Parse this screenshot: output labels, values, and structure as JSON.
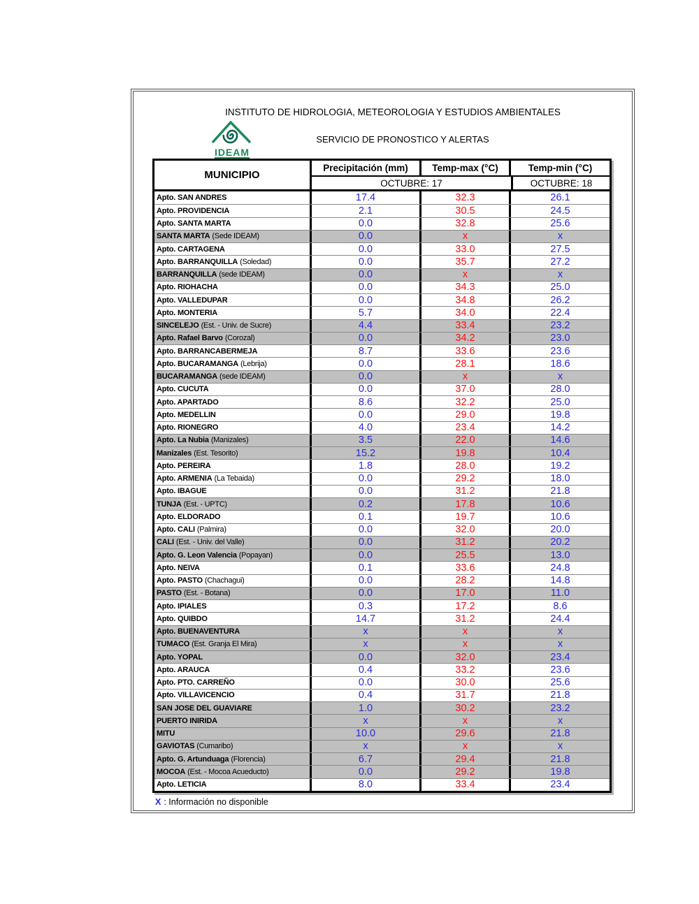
{
  "header": {
    "institute": "INSTITUTO DE HIDROLOGIA, METEOROLOGIA Y ESTUDIOS AMBIENTALES",
    "service": "SERVICIO DE PRONOSTICO Y ALERTAS",
    "logo_text": "IDEAM"
  },
  "table": {
    "columns": [
      "MUNICIPIO",
      "Precipitación (mm)",
      "Temp-max (°C)",
      "Temp-min (°C)"
    ],
    "date_octubre_17": "OCTUBRE: 17",
    "date_octubre_18": "OCTUBRE: 18",
    "rows": [
      {
        "name": "Apto. SAN ANDRES",
        "note": "",
        "precip": "17.4",
        "tmax": "32.3",
        "tmin": "26.1",
        "shaded": false
      },
      {
        "name": "Apto. PROVIDENCIA",
        "note": "",
        "precip": "2.1",
        "tmax": "30.5",
        "tmin": "24.5",
        "shaded": false
      },
      {
        "name": "Apto. SANTA MARTA",
        "note": "",
        "precip": "0.0",
        "tmax": "32.8",
        "tmin": "25.6",
        "shaded": false
      },
      {
        "name": "SANTA MARTA",
        "note": "(Sede IDEAM)",
        "precip": "0.0",
        "tmax": "x",
        "tmin": "x",
        "shaded": true
      },
      {
        "name": "Apto. CARTAGENA",
        "note": "",
        "precip": "0.0",
        "tmax": "33.0",
        "tmin": "27.5",
        "shaded": false
      },
      {
        "name": "Apto. BARRANQUILLA",
        "note": "(Soledad)",
        "precip": "0.0",
        "tmax": "35.7",
        "tmin": "27.2",
        "shaded": false
      },
      {
        "name": "BARRANQUILLA",
        "note": "(sede IDEAM)",
        "precip": "0.0",
        "tmax": "x",
        "tmin": "x",
        "shaded": true
      },
      {
        "name": "Apto. RIOHACHA",
        "note": "",
        "precip": "0.0",
        "tmax": "34.3",
        "tmin": "25.0",
        "shaded": false
      },
      {
        "name": "Apto. VALLEDUPAR",
        "note": "",
        "precip": "0.0",
        "tmax": "34.8",
        "tmin": "26.2",
        "shaded": false
      },
      {
        "name": "Apto. MONTERIA",
        "note": "",
        "precip": "5.7",
        "tmax": "34.0",
        "tmin": "22.4",
        "shaded": false
      },
      {
        "name": "SINCELEJO",
        "note": "(Est. - Univ. de Sucre)",
        "precip": "4.4",
        "tmax": "33.4",
        "tmin": "23.2",
        "shaded": true
      },
      {
        "name": "Apto. Rafael Barvo",
        "note": "(Corozal)",
        "precip": "0.0",
        "tmax": "34.2",
        "tmin": "23.0",
        "shaded": true
      },
      {
        "name": "Apto. BARRANCABERMEJA",
        "note": "",
        "precip": "8.7",
        "tmax": "33.6",
        "tmin": "23.6",
        "shaded": false
      },
      {
        "name": "Apto. BUCARAMANGA",
        "note": "(Lebrija)",
        "precip": "0.0",
        "tmax": "28.1",
        "tmin": "18.6",
        "shaded": false
      },
      {
        "name": "BUCARAMANGA",
        "note": "(sede IDEAM)",
        "precip": "0.0",
        "tmax": "x",
        "tmin": "x",
        "shaded": true
      },
      {
        "name": "Apto. CUCUTA",
        "note": "",
        "precip": "0.0",
        "tmax": "37.0",
        "tmin": "28.0",
        "shaded": false
      },
      {
        "name": "Apto. APARTADO",
        "note": "",
        "precip": "8.6",
        "tmax": "32.2",
        "tmin": "25.0",
        "shaded": false
      },
      {
        "name": "Apto. MEDELLIN",
        "note": "",
        "precip": "0.0",
        "tmax": "29.0",
        "tmin": "19.8",
        "shaded": false
      },
      {
        "name": "Apto. RIONEGRO",
        "note": "",
        "precip": "4.0",
        "tmax": "23.4",
        "tmin": "14.2",
        "shaded": false
      },
      {
        "name": "Apto. La Nubia",
        "note": "(Manizales)",
        "precip": "3.5",
        "tmax": "22.0",
        "tmin": "14.6",
        "shaded": true
      },
      {
        "name": "Manizales",
        "note": "(Est. Tesorito)",
        "precip": "15.2",
        "tmax": "19.8",
        "tmin": "10.4",
        "shaded": true
      },
      {
        "name": "Apto. PEREIRA",
        "note": "",
        "precip": "1.8",
        "tmax": "28.0",
        "tmin": "19.2",
        "shaded": false
      },
      {
        "name": "Apto. ARMENIA",
        "note": "(La Tebaida)",
        "precip": "0.0",
        "tmax": "29.2",
        "tmin": "18.0",
        "shaded": false
      },
      {
        "name": "Apto. IBAGUE",
        "note": "",
        "precip": "0.0",
        "tmax": "31.2",
        "tmin": "21.8",
        "shaded": false
      },
      {
        "name": "TUNJA",
        "note": "(Est. - UPTC)",
        "precip": "0.2",
        "tmax": "17.8",
        "tmin": "10.6",
        "shaded": true
      },
      {
        "name": "Apto. ELDORADO",
        "note": "",
        "precip": "0.1",
        "tmax": "19.7",
        "tmin": "10.6",
        "shaded": false
      },
      {
        "name": "Apto. CALI",
        "note": "(Palmira)",
        "precip": "0.0",
        "tmax": "32.0",
        "tmin": "20.0",
        "shaded": false
      },
      {
        "name": "CALI",
        "note": "(Est. - Univ. del Valle)",
        "precip": "0.0",
        "tmax": "31.2",
        "tmin": "20.2",
        "shaded": true
      },
      {
        "name": "Apto. G. Leon Valencia",
        "note": "(Popayan)",
        "precip": "0.0",
        "tmax": "25.5",
        "tmin": "13.0",
        "shaded": true
      },
      {
        "name": "Apto. NEIVA",
        "note": "",
        "precip": "0.1",
        "tmax": "33.6",
        "tmin": "24.8",
        "shaded": false
      },
      {
        "name": "Apto. PASTO",
        "note": "(Chachagui)",
        "precip": "0.0",
        "tmax": "28.2",
        "tmin": "14.8",
        "shaded": false
      },
      {
        "name": "PASTO",
        "note": "(Est. - Botana)",
        "precip": "0.0",
        "tmax": "17.0",
        "tmin": "11.0",
        "shaded": true
      },
      {
        "name": "Apto. IPIALES",
        "note": "",
        "precip": "0.3",
        "tmax": "17.2",
        "tmin": "8.6",
        "shaded": false
      },
      {
        "name": "Apto. QUIBDO",
        "note": "",
        "precip": "14.7",
        "tmax": "31.2",
        "tmin": "24.4",
        "shaded": false
      },
      {
        "name": "Apto. BUENAVENTURA",
        "note": "",
        "precip": "x",
        "tmax": "x",
        "tmin": "x",
        "shaded": true
      },
      {
        "name": "TUMACO",
        "note": "(Est. Granja El Mira)",
        "precip": "x",
        "tmax": "x",
        "tmin": "x",
        "shaded": true
      },
      {
        "name": "Apto. YOPAL",
        "note": "",
        "precip": "0.0",
        "tmax": "32.0",
        "tmin": "23.4",
        "shaded": true
      },
      {
        "name": "Apto. ARAUCA",
        "note": "",
        "precip": "0.4",
        "tmax": "33.2",
        "tmin": "23.6",
        "shaded": false
      },
      {
        "name": "Apto. PTO.  CARREÑO",
        "note": "",
        "precip": "0.0",
        "tmax": "30.0",
        "tmin": "25.6",
        "shaded": false
      },
      {
        "name": "Apto. VILLAVICENCIO",
        "note": "",
        "precip": "0.4",
        "tmax": "31.7",
        "tmin": "21.8",
        "shaded": false
      },
      {
        "name": "SAN JOSE DEL GUAVIARE",
        "note": "",
        "precip": "1.0",
        "tmax": "30.2",
        "tmin": "23.2",
        "shaded": true
      },
      {
        "name": "PUERTO INIRIDA",
        "note": "",
        "precip": "x",
        "tmax": "x",
        "tmin": "x",
        "shaded": true
      },
      {
        "name": "MITU",
        "note": "",
        "precip": "10.0",
        "tmax": "29.6",
        "tmin": "21.8",
        "shaded": true
      },
      {
        "name": "GAVIOTAS",
        "note": "(Cumaribo)",
        "precip": "x",
        "tmax": "x",
        "tmin": "x",
        "shaded": true
      },
      {
        "name": "Apto. G. Artunduaga",
        "note": "(Florencia)",
        "precip": "6.7",
        "tmax": "29.4",
        "tmin": "21.8",
        "shaded": true
      },
      {
        "name": "MOCOA",
        "note": "(Est. - Mocoa Acueducto)",
        "precip": "0.0",
        "tmax": "29.2",
        "tmin": "19.8",
        "shaded": true
      },
      {
        "name": "Apto. LETICIA",
        "note": "",
        "precip": "8.0",
        "tmax": "33.4",
        "tmin": "23.4",
        "shaded": false
      }
    ]
  },
  "footer": {
    "legend_symbol": "X",
    "legend_text": ": Información no disponible"
  },
  "colors": {
    "value_blue": "#2828dc",
    "value_red": "#fa0f0c",
    "shaded_row": "#c0c0c0",
    "logo_green": "#1c8a5a",
    "logo_dark_teal": "#0e5f4e"
  }
}
